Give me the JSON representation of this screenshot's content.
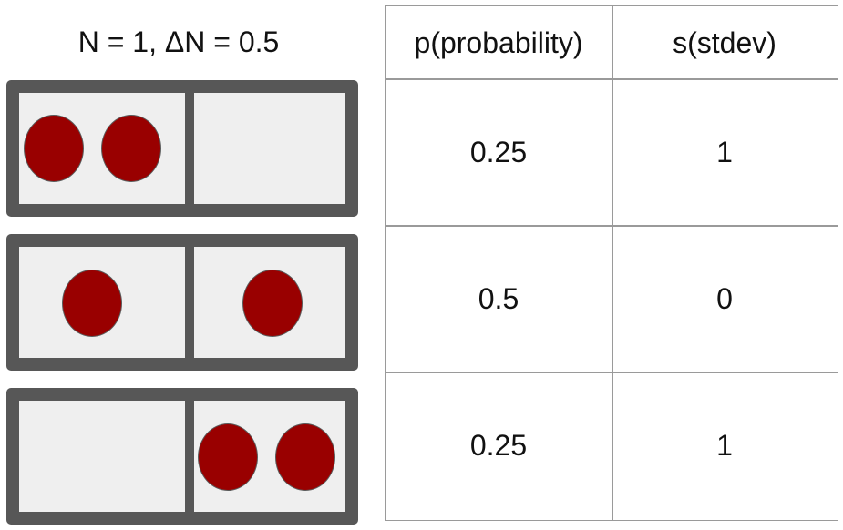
{
  "title": "N = 1, ΔN = 0.5",
  "colors": {
    "box_frame": "#575757",
    "box_fill": "#efefef",
    "ball": "#990000",
    "grid": "#9a9a9a"
  },
  "configurations": [
    {
      "left_balls": 2,
      "right_balls": 0
    },
    {
      "left_balls": 1,
      "right_balls": 1
    },
    {
      "left_balls": 0,
      "right_balls": 2
    }
  ],
  "table": {
    "headers": [
      "p(probability)",
      "s(stdev)"
    ],
    "rows": [
      [
        "0.25",
        "1"
      ],
      [
        "0.5",
        "0"
      ],
      [
        "0.25",
        "1"
      ]
    ]
  }
}
